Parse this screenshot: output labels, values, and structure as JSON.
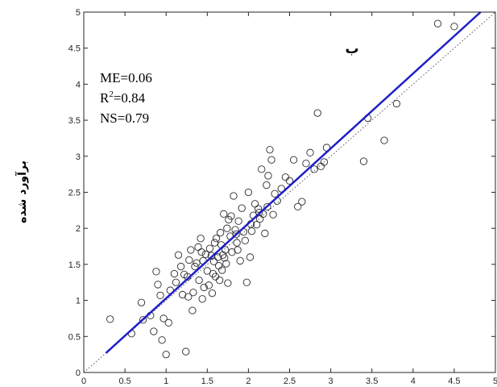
{
  "chart_data": {
    "type": "scatter",
    "title": "",
    "xlabel": "",
    "ylabel": "برآورد شده",
    "panel_label": "ب",
    "xlim": [
      0,
      5
    ],
    "ylim": [
      0,
      5
    ],
    "x_ticks": [
      0,
      0.5,
      1,
      1.5,
      2,
      2.5,
      3,
      3.5,
      4,
      4.5,
      5
    ],
    "y_ticks": [
      0,
      0.5,
      1,
      1.5,
      2,
      2.5,
      3,
      3.5,
      4,
      4.5,
      5
    ],
    "grid": false,
    "legend": false,
    "stats": {
      "me": "ME=0.06",
      "r2_base": "R",
      "r2_sup": "2",
      "r2_value": "=0.84",
      "ns": "NS=0.79"
    },
    "fit_line": {
      "color": "#1f1fc8",
      "x": [
        0.27,
        4.82
      ],
      "y": [
        0.27,
        5.0
      ]
    },
    "reference_line": {
      "style": "dotted",
      "x": [
        0,
        5
      ],
      "y": [
        0,
        5
      ]
    },
    "points": [
      [
        0.32,
        0.74
      ],
      [
        0.58,
        0.54
      ],
      [
        0.7,
        0.97
      ],
      [
        0.72,
        0.73
      ],
      [
        0.81,
        0.79
      ],
      [
        0.85,
        0.57
      ],
      [
        0.88,
        1.4
      ],
      [
        0.9,
        1.22
      ],
      [
        0.93,
        1.07
      ],
      [
        0.95,
        0.45
      ],
      [
        0.97,
        0.75
      ],
      [
        1.0,
        0.25
      ],
      [
        1.03,
        0.69
      ],
      [
        1.05,
        1.14
      ],
      [
        1.1,
        1.37
      ],
      [
        1.12,
        1.25
      ],
      [
        1.15,
        1.63
      ],
      [
        1.18,
        1.47
      ],
      [
        1.2,
        1.08
      ],
      [
        1.22,
        1.36
      ],
      [
        1.24,
        0.29
      ],
      [
        1.26,
        1.33
      ],
      [
        1.28,
        1.56
      ],
      [
        1.3,
        1.7
      ],
      [
        1.32,
        0.86
      ],
      [
        1.33,
        1.11
      ],
      [
        1.35,
        1.47
      ],
      [
        1.37,
        1.52
      ],
      [
        1.39,
        1.74
      ],
      [
        1.4,
        1.28
      ],
      [
        1.42,
        1.86
      ],
      [
        1.44,
        1.02
      ],
      [
        1.45,
        1.55
      ],
      [
        1.48,
        1.64
      ],
      [
        1.5,
        1.41
      ],
      [
        1.52,
        1.21
      ],
      [
        1.53,
        1.72
      ],
      [
        1.55,
        1.62
      ],
      [
        1.56,
        1.1
      ],
      [
        1.58,
        1.54
      ],
      [
        1.6,
        1.33
      ],
      [
        1.61,
        1.86
      ],
      [
        1.63,
        1.6
      ],
      [
        1.64,
        1.48
      ],
      [
        1.66,
        1.94
      ],
      [
        1.67,
        1.77
      ],
      [
        1.69,
        1.63
      ],
      [
        1.7,
        2.2
      ],
      [
        1.72,
        1.7
      ],
      [
        1.73,
        1.51
      ],
      [
        1.75,
        1.24
      ],
      [
        1.76,
        2.12
      ],
      [
        1.78,
        1.89
      ],
      [
        1.8,
        1.67
      ],
      [
        1.82,
        2.45
      ],
      [
        1.84,
        1.98
      ],
      [
        1.86,
        1.8
      ],
      [
        1.88,
        2.1
      ],
      [
        1.9,
        1.55
      ],
      [
        1.92,
        2.28
      ],
      [
        1.94,
        1.95
      ],
      [
        1.96,
        1.83
      ],
      [
        1.98,
        1.25
      ],
      [
        2.0,
        2.5
      ],
      [
        2.02,
        1.6
      ],
      [
        2.04,
        1.96
      ],
      [
        2.06,
        2.18
      ],
      [
        2.08,
        2.34
      ],
      [
        2.1,
        2.05
      ],
      [
        2.12,
        2.27
      ],
      [
        2.14,
        2.13
      ],
      [
        2.16,
        2.82
      ],
      [
        2.18,
        2.2
      ],
      [
        2.2,
        1.93
      ],
      [
        2.22,
        2.6
      ],
      [
        2.24,
        2.73
      ],
      [
        2.26,
        3.09
      ],
      [
        2.28,
        2.95
      ],
      [
        2.3,
        2.19
      ],
      [
        2.32,
        2.48
      ],
      [
        2.35,
        2.38
      ],
      [
        2.4,
        2.55
      ],
      [
        2.45,
        2.71
      ],
      [
        2.5,
        2.66
      ],
      [
        2.55,
        2.95
      ],
      [
        2.6,
        2.3
      ],
      [
        2.65,
        2.37
      ],
      [
        2.7,
        2.9
      ],
      [
        2.75,
        3.05
      ],
      [
        2.8,
        2.82
      ],
      [
        2.84,
        3.6
      ],
      [
        2.88,
        2.86
      ],
      [
        2.92,
        2.92
      ],
      [
        2.95,
        3.12
      ],
      [
        3.4,
        2.93
      ],
      [
        3.45,
        3.53
      ],
      [
        3.65,
        3.22
      ],
      [
        3.8,
        3.73
      ],
      [
        4.3,
        4.84
      ],
      [
        4.5,
        4.8
      ],
      [
        1.27,
        1.05
      ],
      [
        1.46,
        1.18
      ],
      [
        1.57,
        1.37
      ],
      [
        1.68,
        1.42
      ],
      [
        1.74,
        2.0
      ],
      [
        1.79,
        2.17
      ],
      [
        1.87,
        1.7
      ],
      [
        2.03,
        2.06
      ],
      [
        2.13,
        2.22
      ],
      [
        2.23,
        2.3
      ],
      [
        1.43,
        1.67
      ],
      [
        1.59,
        1.8
      ],
      [
        1.65,
        1.28
      ],
      [
        1.71,
        1.59
      ],
      [
        1.85,
        1.92
      ]
    ]
  }
}
